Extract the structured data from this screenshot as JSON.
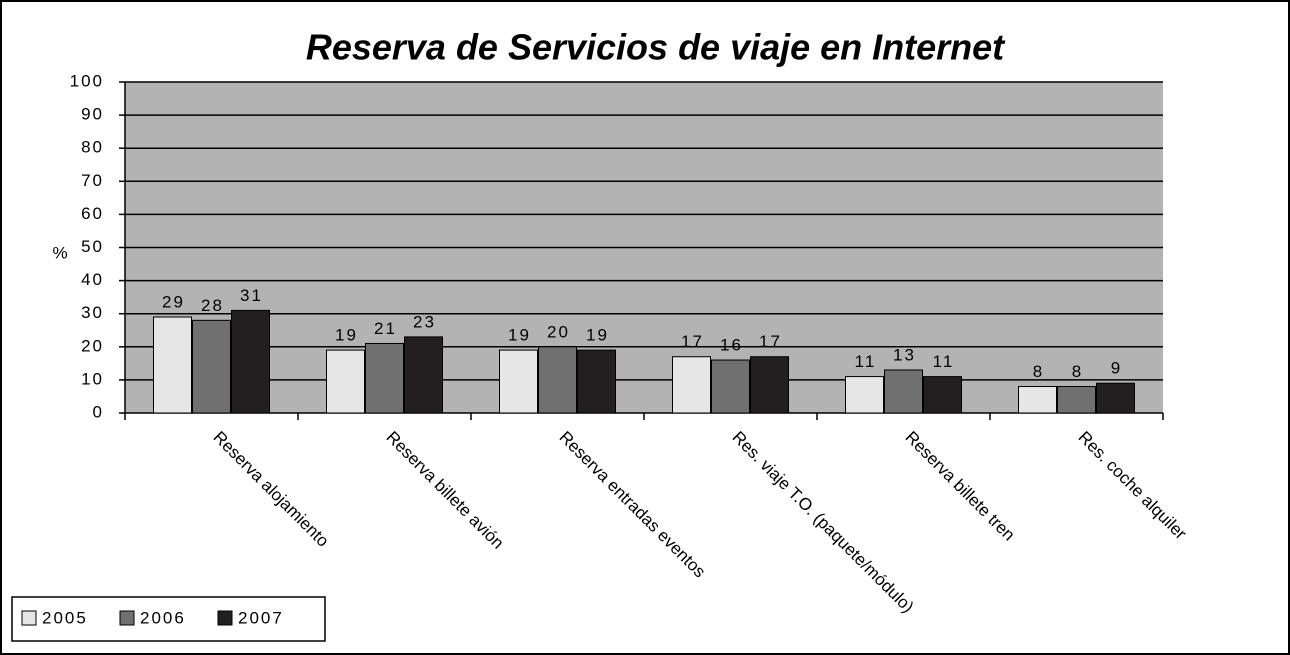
{
  "chart_data": {
    "type": "bar",
    "title": "Reserva de Servicios de viaje en Internet",
    "y_label": "%",
    "categories": [
      "Reserva alojamiento",
      "Reserva billete avión",
      "Reserva entradas eventos",
      "Res. viaje T.O. (paquete/módulo)",
      "Reserva billete tren",
      "Res. coche alquiler"
    ],
    "series": [
      {
        "name": "2005",
        "color": "#e6e6e6",
        "values": [
          29,
          19,
          19,
          17,
          11,
          8
        ]
      },
      {
        "name": "2006",
        "color": "#707070",
        "values": [
          28,
          21,
          20,
          16,
          13,
          8
        ]
      },
      {
        "name": "2007",
        "color": "#231f20",
        "values": [
          31,
          23,
          19,
          17,
          11,
          9
        ]
      }
    ],
    "ylim": [
      0,
      100
    ],
    "yticks": [
      0,
      10,
      20,
      30,
      40,
      50,
      60,
      70,
      80,
      90,
      100
    ],
    "grid": true,
    "legend": "bottom-left",
    "plot_background": "#b3b3b3"
  }
}
